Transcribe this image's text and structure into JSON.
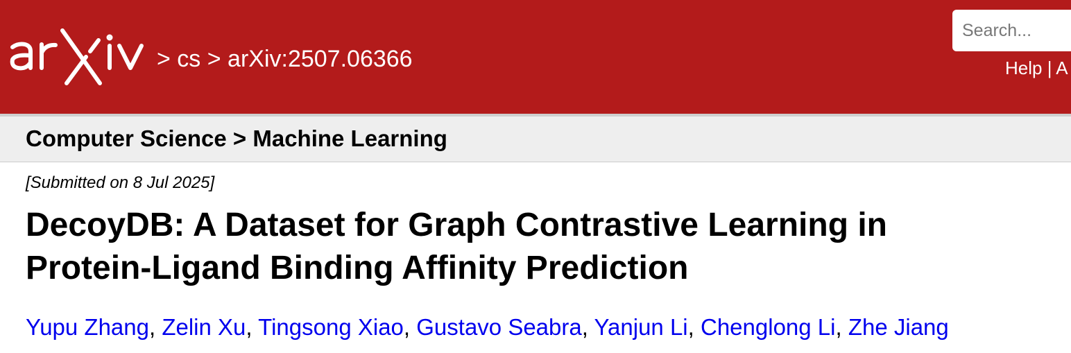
{
  "header": {
    "logo_text": "arXiv",
    "breadcrumb": "> cs > arXiv:2507.06366",
    "search": {
      "placeholder": "Search..."
    },
    "help_links": "Help | A"
  },
  "subheader": {
    "text": "Computer Science > Machine Learning"
  },
  "paper": {
    "submitted": "[Submitted on 8 Jul 2025]",
    "title_line1": "DecoyDB: A Dataset for Graph Contrastive Learning in",
    "title_line2": "Protein-Ligand Binding Affinity Prediction",
    "authors": [
      "Yupu Zhang",
      "Zelin Xu",
      "Tingsong Xiao",
      "Gustavo Seabra",
      "Yanjun Li",
      "Chenglong Li",
      "Zhe Jiang"
    ],
    "author_separator": ", "
  },
  "colors": {
    "header_bg": "#b31b1b",
    "subheader_bg": "#eeeeee",
    "link": "#0000ee"
  }
}
